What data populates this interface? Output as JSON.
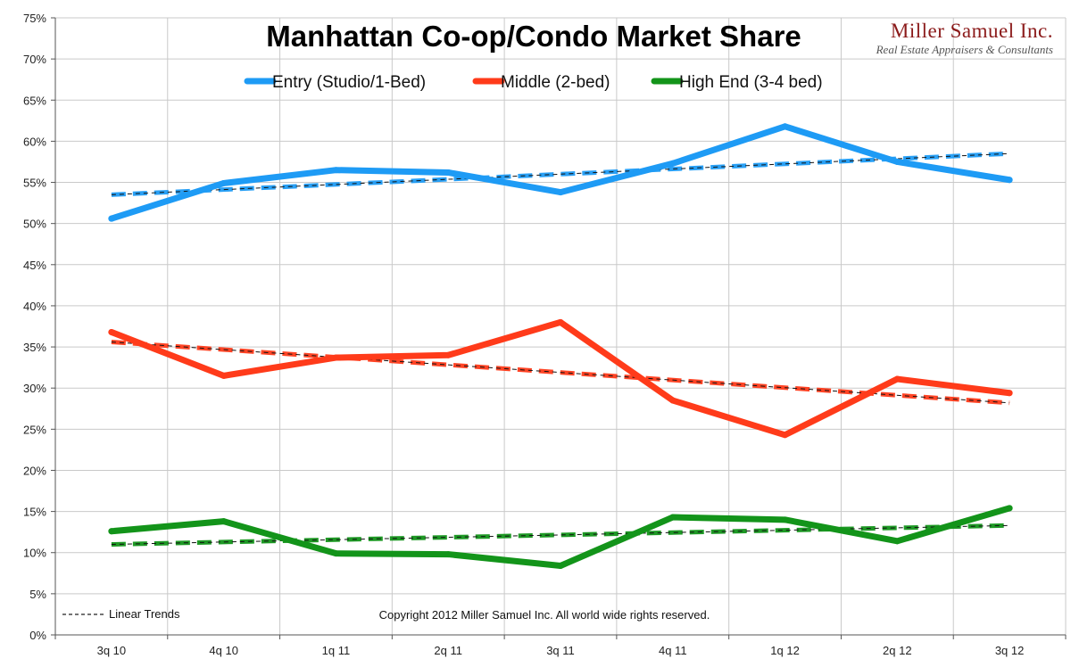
{
  "chart_data": {
    "type": "line",
    "title": "Manhattan Co-op/Condo Market Share",
    "categories": [
      "3q 10",
      "4q 10",
      "1q 11",
      "2q 11",
      "3q 11",
      "4q 11",
      "1q 12",
      "2q 12",
      "3q 12"
    ],
    "ylim": [
      0,
      75
    ],
    "ytick_step": 5,
    "ytick_suffix": "%",
    "grid": true,
    "series": [
      {
        "name": "Entry (Studio/1-Bed)",
        "color": "#1e9bf5",
        "values": [
          50.6,
          54.9,
          56.5,
          56.2,
          53.8,
          57.3,
          61.8,
          57.5,
          55.3
        ],
        "trend": [
          53.5,
          58.5
        ]
      },
      {
        "name": "Middle (2-bed)",
        "color": "#ff3b1a",
        "values": [
          36.8,
          31.5,
          33.7,
          34.0,
          38.0,
          28.5,
          24.3,
          31.1,
          29.4
        ],
        "trend": [
          35.6,
          28.2
        ]
      },
      {
        "name": "High End (3-4 bed)",
        "color": "#13941a",
        "values": [
          12.6,
          13.8,
          9.9,
          9.8,
          8.4,
          14.3,
          14.0,
          11.4,
          15.4
        ],
        "trend": [
          11.0,
          13.3
        ]
      }
    ],
    "legend_position": "top-center",
    "trend_legend": "Linear Trends",
    "copyright": "Copyright 2012 Miller Samuel Inc. All world wide rights reserved."
  },
  "logo": {
    "name": "Miller Samuel Inc.",
    "tagline": "Real Estate Appraisers & Consultants"
  }
}
